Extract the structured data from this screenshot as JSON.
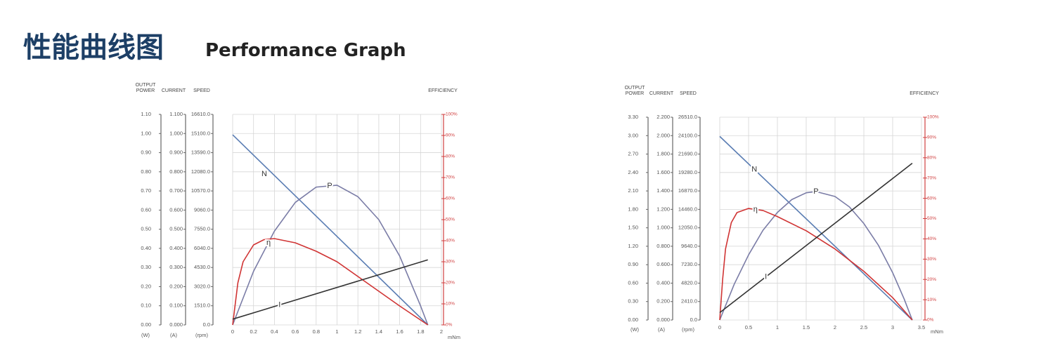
{
  "header": {
    "title_cn": "性能曲线图",
    "title_en": "Performance Graph"
  },
  "chart_data": [
    {
      "type": "line",
      "x_label": "mNm",
      "xlim": [
        0,
        2
      ],
      "xticks": [
        0,
        0.2,
        0.4,
        0.6,
        0.8,
        1,
        1.2,
        1.4,
        1.6,
        1.8,
        2
      ],
      "grid": true,
      "y_axes": [
        {
          "label": "OUTPUT POWER",
          "unit": "(W)",
          "lim": [
            0,
            1.1
          ],
          "ticks": [
            {
              "value": 0,
              "label": "0.00"
            },
            {
              "value": 0.1,
              "label": "0.10"
            },
            {
              "value": 0.2,
              "label": "0.20"
            },
            {
              "value": 0.3,
              "label": "0.30"
            },
            {
              "value": 0.4,
              "label": "0.40"
            },
            {
              "value": 0.5,
              "label": "0.50"
            },
            {
              "value": 0.6,
              "label": "0.60"
            },
            {
              "value": 0.7,
              "label": "0.70"
            },
            {
              "value": 0.8,
              "label": "0.80"
            },
            {
              "value": 0.9,
              "label": "0.90"
            },
            {
              "value": 1,
              "label": "1.00"
            },
            {
              "value": 1.1,
              "label": "1.10"
            }
          ]
        },
        {
          "label": "CURRENT",
          "unit": "(A)",
          "lim": [
            0,
            1.1
          ],
          "ticks": [
            {
              "value": 0,
              "label": "0.000"
            },
            {
              "value": 0.1,
              "label": "0.100"
            },
            {
              "value": 0.2,
              "label": "0.200"
            },
            {
              "value": 0.3,
              "label": "0.300"
            },
            {
              "value": 0.4,
              "label": "0.400"
            },
            {
              "value": 0.5,
              "label": "0.500"
            },
            {
              "value": 0.6,
              "label": "0.600"
            },
            {
              "value": 0.7,
              "label": "0.700"
            },
            {
              "value": 0.8,
              "label": "0.800"
            },
            {
              "value": 0.9,
              "label": "0.900"
            },
            {
              "value": 1,
              "label": "1.000"
            },
            {
              "value": 1.1,
              "label": "1.100"
            }
          ]
        },
        {
          "label": "SPEED",
          "unit": "(rpm)",
          "lim": [
            0,
            16610
          ],
          "ticks": [
            {
              "value": 0,
              "label": "0.0"
            },
            {
              "value": 1510,
              "label": "1510.0"
            },
            {
              "value": 3020,
              "label": "3020.0"
            },
            {
              "value": 4530,
              "label": "4530.0"
            },
            {
              "value": 6040,
              "label": "6040.0"
            },
            {
              "value": 7550,
              "label": "7550.0"
            },
            {
              "value": 9060,
              "label": "9060.0"
            },
            {
              "value": 10570,
              "label": "10570.0"
            },
            {
              "value": 12080,
              "label": "12080.0"
            },
            {
              "value": 13590,
              "label": "13590.0"
            },
            {
              "value": 15100,
              "label": "15100.0"
            },
            {
              "value": 16610,
              "label": "16610.0"
            }
          ]
        },
        {
          "label": "EFFICIENCY",
          "lim": [
            0,
            100
          ],
          "color": "#d04040",
          "ticks": [
            {
              "value": 0,
              "label": "0%"
            },
            {
              "value": 10,
              "label": "10%"
            },
            {
              "value": 20,
              "label": "20%"
            },
            {
              "value": 30,
              "label": "30%"
            },
            {
              "value": 40,
              "label": "40%"
            },
            {
              "value": 50,
              "label": "50%"
            },
            {
              "value": 60,
              "label": "60%"
            },
            {
              "value": 70,
              "label": "70%"
            },
            {
              "value": 80,
              "label": "80%"
            },
            {
              "value": 90,
              "label": "90%"
            },
            {
              "value": 100,
              "label": "100%"
            }
          ]
        }
      ],
      "series": [
        {
          "name": "N",
          "color": "#5a7db3",
          "axis": 2,
          "x": [
            0,
            1.87
          ],
          "values": [
            15000,
            0
          ]
        },
        {
          "name": "P",
          "color": "#7a7ca6",
          "axis": 0,
          "x": [
            0,
            0.2,
            0.4,
            0.6,
            0.8,
            1,
            1.2,
            1.4,
            1.6,
            1.8,
            1.87
          ],
          "values": [
            0,
            0.28,
            0.49,
            0.64,
            0.72,
            0.73,
            0.67,
            0.55,
            0.36,
            0.1,
            0
          ]
        },
        {
          "name": "η",
          "color": "#d03434",
          "axis": 3,
          "x": [
            0,
            0.05,
            0.1,
            0.2,
            0.3,
            0.4,
            0.6,
            0.8,
            1,
            1.2,
            1.4,
            1.6,
            1.87
          ],
          "values": [
            0,
            20,
            30,
            38,
            40.5,
            41,
            39,
            35,
            30,
            23,
            16,
            9,
            0
          ]
        },
        {
          "name": "I",
          "color": "#333333",
          "axis": 1,
          "x": [
            0,
            1.87
          ],
          "values": [
            0.03,
            0.34
          ]
        }
      ]
    },
    {
      "type": "line",
      "x_label": "mNm",
      "xlim": [
        0,
        3.5
      ],
      "xticks": [
        0,
        0.5,
        1,
        1.5,
        2,
        2.5,
        3,
        3.5
      ],
      "grid": true,
      "y_axes": [
        {
          "label": "OUTPUT POWER",
          "unit": "(W)",
          "lim": [
            0,
            3.3
          ],
          "ticks": [
            {
              "value": 0,
              "label": "0.00"
            },
            {
              "value": 0.3,
              "label": "0.30"
            },
            {
              "value": 0.6,
              "label": "0.60"
            },
            {
              "value": 0.9,
              "label": "0.90"
            },
            {
              "value": 1.2,
              "label": "1.20"
            },
            {
              "value": 1.5,
              "label": "1.50"
            },
            {
              "value": 1.8,
              "label": "1.80"
            },
            {
              "value": 2.1,
              "label": "2.10"
            },
            {
              "value": 2.4,
              "label": "2.40"
            },
            {
              "value": 2.7,
              "label": "2.70"
            },
            {
              "value": 3,
              "label": "3.00"
            },
            {
              "value": 3.3,
              "label": "3.30"
            }
          ]
        },
        {
          "label": "CURRENT",
          "unit": "(A)",
          "lim": [
            0,
            2.2
          ],
          "ticks": [
            {
              "value": 0,
              "label": "0.000"
            },
            {
              "value": 0.2,
              "label": "0.200"
            },
            {
              "value": 0.4,
              "label": "0.400"
            },
            {
              "value": 0.6,
              "label": "0.600"
            },
            {
              "value": 0.8,
              "label": "0.800"
            },
            {
              "value": 1,
              "label": "1.000"
            },
            {
              "value": 1.2,
              "label": "1.200"
            },
            {
              "value": 1.4,
              "label": "1.400"
            },
            {
              "value": 1.6,
              "label": "1.600"
            },
            {
              "value": 1.8,
              "label": "1.800"
            },
            {
              "value": 2,
              "label": "2.000"
            },
            {
              "value": 2.2,
              "label": "2.200"
            }
          ]
        },
        {
          "label": "SPEED",
          "unit": "(rpm)",
          "lim": [
            0,
            26510
          ],
          "ticks": [
            {
              "value": 0,
              "label": "0.0"
            },
            {
              "value": 2410,
              "label": "2410.0"
            },
            {
              "value": 4820,
              "label": "4820.0"
            },
            {
              "value": 7230,
              "label": "7230.0"
            },
            {
              "value": 9640,
              "label": "9640.0"
            },
            {
              "value": 12050,
              "label": "12050.0"
            },
            {
              "value": 14460,
              "label": "14460.0"
            },
            {
              "value": 16870,
              "label": "16870.0"
            },
            {
              "value": 19280,
              "label": "19280.0"
            },
            {
              "value": 21690,
              "label": "21690.0"
            },
            {
              "value": 24100,
              "label": "24100.0"
            },
            {
              "value": 26510,
              "label": "26510.0"
            }
          ]
        },
        {
          "label": "EFFICIENCY",
          "lim": [
            0,
            100
          ],
          "color": "#d04040",
          "ticks": [
            {
              "value": 0,
              "label": "0%"
            },
            {
              "value": 10,
              "label": "10%"
            },
            {
              "value": 20,
              "label": "20%"
            },
            {
              "value": 30,
              "label": "30%"
            },
            {
              "value": 40,
              "label": "40%"
            },
            {
              "value": 50,
              "label": "50%"
            },
            {
              "value": 60,
              "label": "60%"
            },
            {
              "value": 70,
              "label": "70%"
            },
            {
              "value": 80,
              "label": "80%"
            },
            {
              "value": 90,
              "label": "90%"
            },
            {
              "value": 100,
              "label": "100%"
            }
          ]
        }
      ],
      "series": [
        {
          "name": "N",
          "color": "#5a7db3",
          "axis": 2,
          "x": [
            0,
            3.34
          ],
          "values": [
            24000,
            0
          ]
        },
        {
          "name": "P",
          "color": "#7a7ca6",
          "axis": 0,
          "x": [
            0,
            0.25,
            0.5,
            0.75,
            1,
            1.25,
            1.5,
            1.67,
            2,
            2.25,
            2.5,
            2.75,
            3,
            3.2,
            3.34
          ],
          "values": [
            0,
            0.58,
            1.06,
            1.46,
            1.75,
            1.96,
            2.07,
            2.09,
            2.01,
            1.84,
            1.57,
            1.22,
            0.77,
            0.34,
            0
          ]
        },
        {
          "name": "η",
          "color": "#d03434",
          "axis": 3,
          "x": [
            0,
            0.05,
            0.1,
            0.2,
            0.3,
            0.5,
            0.75,
            1,
            1.5,
            2,
            2.5,
            3,
            3.34
          ],
          "values": [
            0,
            20,
            35,
            48,
            53,
            55,
            54,
            51,
            44,
            35,
            24,
            11,
            0
          ]
        },
        {
          "name": "I",
          "color": "#333333",
          "axis": 1,
          "x": [
            0,
            3.34
          ],
          "values": [
            0.08,
            1.7
          ]
        }
      ]
    }
  ]
}
